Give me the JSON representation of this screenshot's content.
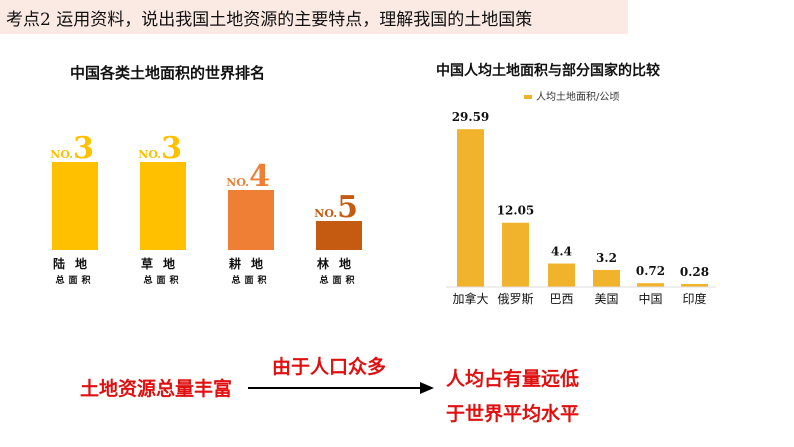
{
  "heading": "考点2 运用资料，说出我国土地资源的主要特点，理解我国的土地国策",
  "chart_data": [
    {
      "type": "bar",
      "title": "中国各类土地面积的世界排名",
      "categories": [
        "陆地",
        "草地",
        "耕地",
        "林地"
      ],
      "category_sublabel": "总面积",
      "rank_prefix": "NO.",
      "values": [
        3,
        3,
        4,
        5
      ],
      "colors": [
        "#ffc000",
        "#ffc000",
        "#ee7f35",
        "#c55a11"
      ]
    },
    {
      "type": "bar",
      "title": "中国人均土地面积与部分国家的比较",
      "legend": "人均土地面积/公顷",
      "legend_position": "top-right",
      "categories": [
        "加拿大",
        "俄罗斯",
        "巴西",
        "美国",
        "中国",
        "印度"
      ],
      "series": [
        {
          "name": "人均土地面积/公顷",
          "values": [
            29.59,
            12.05,
            4.4,
            3.2,
            0.72,
            0.28
          ]
        }
      ],
      "value_labels": [
        "29.59",
        "12.05",
        "4.4",
        "3.2",
        "0.72",
        "0.28"
      ],
      "ylim": [
        0,
        30
      ],
      "color": "#f2b32c"
    }
  ],
  "bottom": {
    "left": "土地资源总量丰富",
    "middle": "由于人口众多",
    "right_line1": "人均占有量远低",
    "right_line2": "于世界平均水平"
  },
  "colors": {
    "accent": "#e01010",
    "heading_bg": "#fbe9e3"
  }
}
